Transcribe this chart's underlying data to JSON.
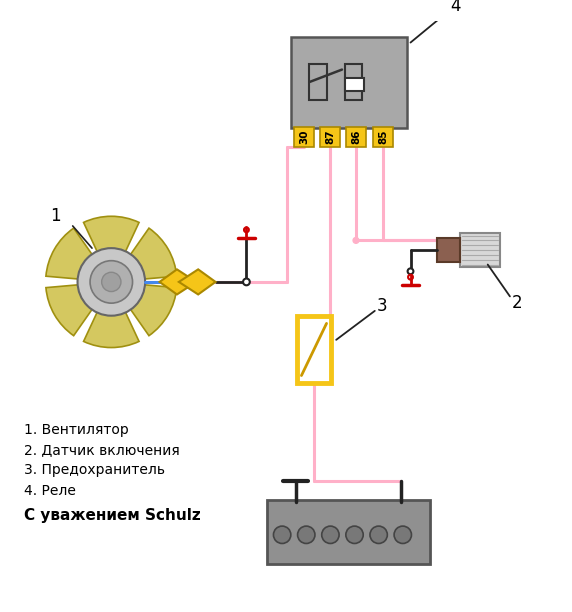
{
  "bg_color": "#ffffff",
  "legend_items": [
    "1. Вентилятор",
    "2. Датчик включения",
    "3. Предохранитель",
    "4. Реле"
  ],
  "signature": "С уважением Schulz",
  "relay_pins": [
    "30",
    "87",
    "86",
    "85"
  ],
  "wire_pink": "#FFB0C8",
  "wire_blue": "#4488EE",
  "wire_black": "#222222",
  "relay_pin_color": "#F5C518",
  "relay_body_color": "#A8A8A8",
  "fuse_color": "#F5C518",
  "fan_blade_color": "#D4C860",
  "motor_color": "#B8B8B8",
  "ground_color": "#CC0000",
  "label_color": "#000000"
}
